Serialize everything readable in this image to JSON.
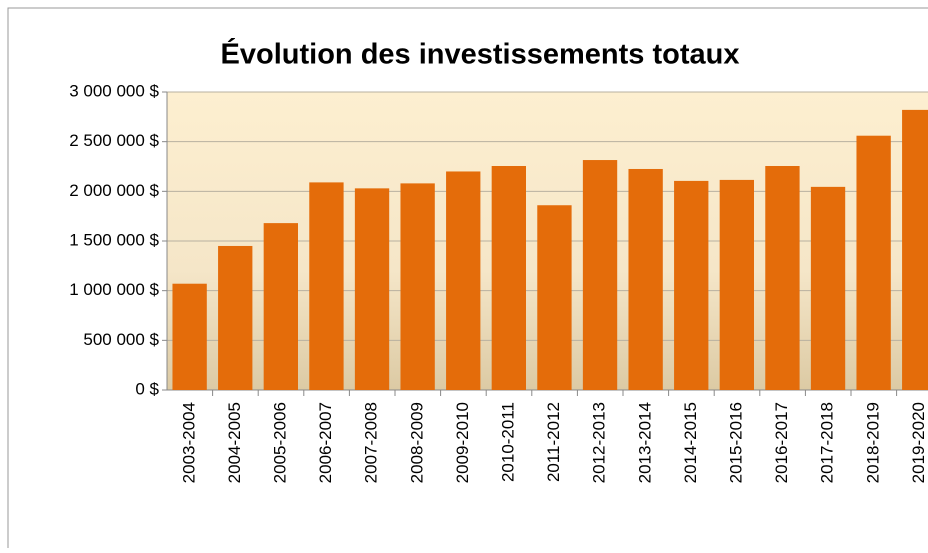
{
  "chart_data": {
    "type": "bar",
    "title": "Évolution des investissements totaux",
    "categories": [
      "2003-2004",
      "2004-2005",
      "2005-2006",
      "2006-2007",
      "2007-2008",
      "2008-2009",
      "2009-2010",
      "2010-2011",
      "2011-2012",
      "2012-2013",
      "2013-2014",
      "2014-2015",
      "2015-2016",
      "2016-2017",
      "2017-2018",
      "2018-2019",
      "2019-2020"
    ],
    "values": [
      1070000,
      1450000,
      1680000,
      2090000,
      2030000,
      2080000,
      2200000,
      2255000,
      1860000,
      2315000,
      2225000,
      2105000,
      2115000,
      2255000,
      2045000,
      2560000,
      2820000
    ],
    "color": "#e46c0a",
    "ylim": [
      0,
      3000000
    ],
    "yticks": [
      {
        "value": 0,
        "label": "0 $"
      },
      {
        "value": 500000,
        "label": "500 000 $"
      },
      {
        "value": 1000000,
        "label": "1 000 000 $"
      },
      {
        "value": 1500000,
        "label": "1 500 000 $"
      },
      {
        "value": 2000000,
        "label": "2 000 000 $"
      },
      {
        "value": 2500000,
        "label": "2 500 000 $"
      },
      {
        "value": 3000000,
        "label": "3 000 000 $"
      }
    ],
    "grid": true
  }
}
